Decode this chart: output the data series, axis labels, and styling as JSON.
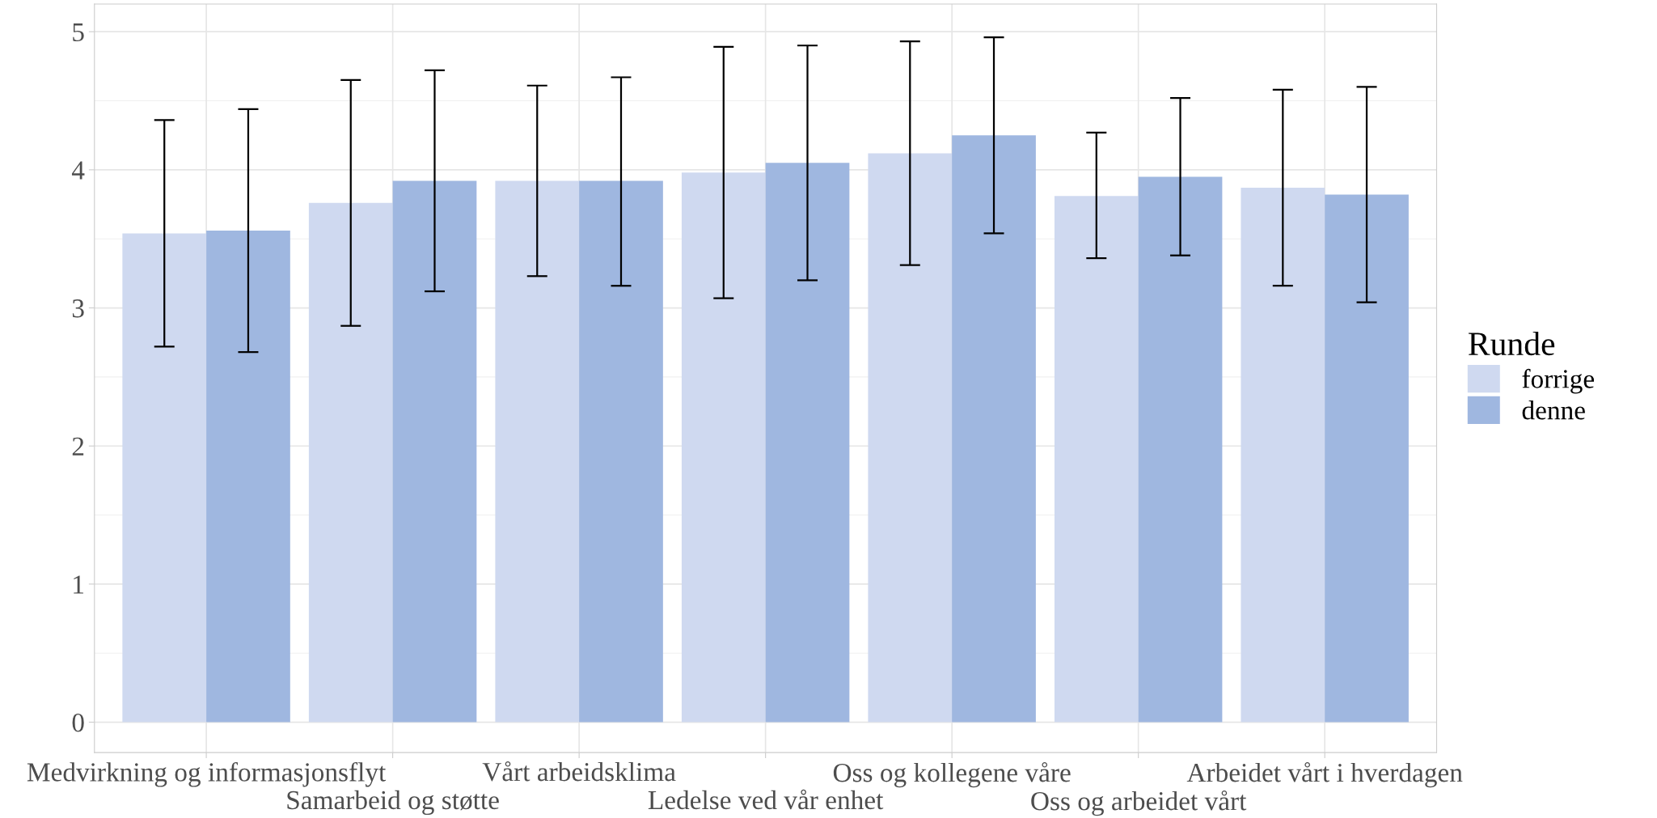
{
  "chart_data": {
    "type": "bar",
    "categories": [
      "Medvirkning og informasjonsflyt",
      "Samarbeid og støtte",
      "Vårt arbeidsklima",
      "Ledelse ved vår enhet",
      "Oss og kollegene våre",
      "Oss og arbeidet vårt",
      "Arbeidet vårt i hverdagen"
    ],
    "series": [
      {
        "name": "forrige",
        "color": "#cfd9f0",
        "values": [
          3.54,
          3.76,
          3.92,
          3.98,
          4.12,
          3.81,
          3.87
        ],
        "errors": [
          [
            2.72,
            4.36
          ],
          [
            2.87,
            4.65
          ],
          [
            3.23,
            4.61
          ],
          [
            3.07,
            4.89
          ],
          [
            3.31,
            4.93
          ],
          [
            3.36,
            4.27
          ],
          [
            3.16,
            4.58
          ]
        ]
      },
      {
        "name": "denne",
        "color": "#9fb7e0",
        "values": [
          3.56,
          3.92,
          3.92,
          4.05,
          4.25,
          3.95,
          3.82
        ],
        "errors": [
          [
            2.68,
            4.44
          ],
          [
            3.12,
            4.72
          ],
          [
            3.16,
            4.67
          ],
          [
            3.2,
            4.9
          ],
          [
            3.54,
            4.96
          ],
          [
            3.38,
            4.52
          ],
          [
            3.04,
            4.6
          ]
        ]
      }
    ],
    "legend_title": "Runde",
    "legend": "right",
    "ylim": [
      -0.22,
      5.2
    ],
    "yticks": [
      0,
      1,
      2,
      3,
      4,
      5
    ],
    "grid": true
  }
}
